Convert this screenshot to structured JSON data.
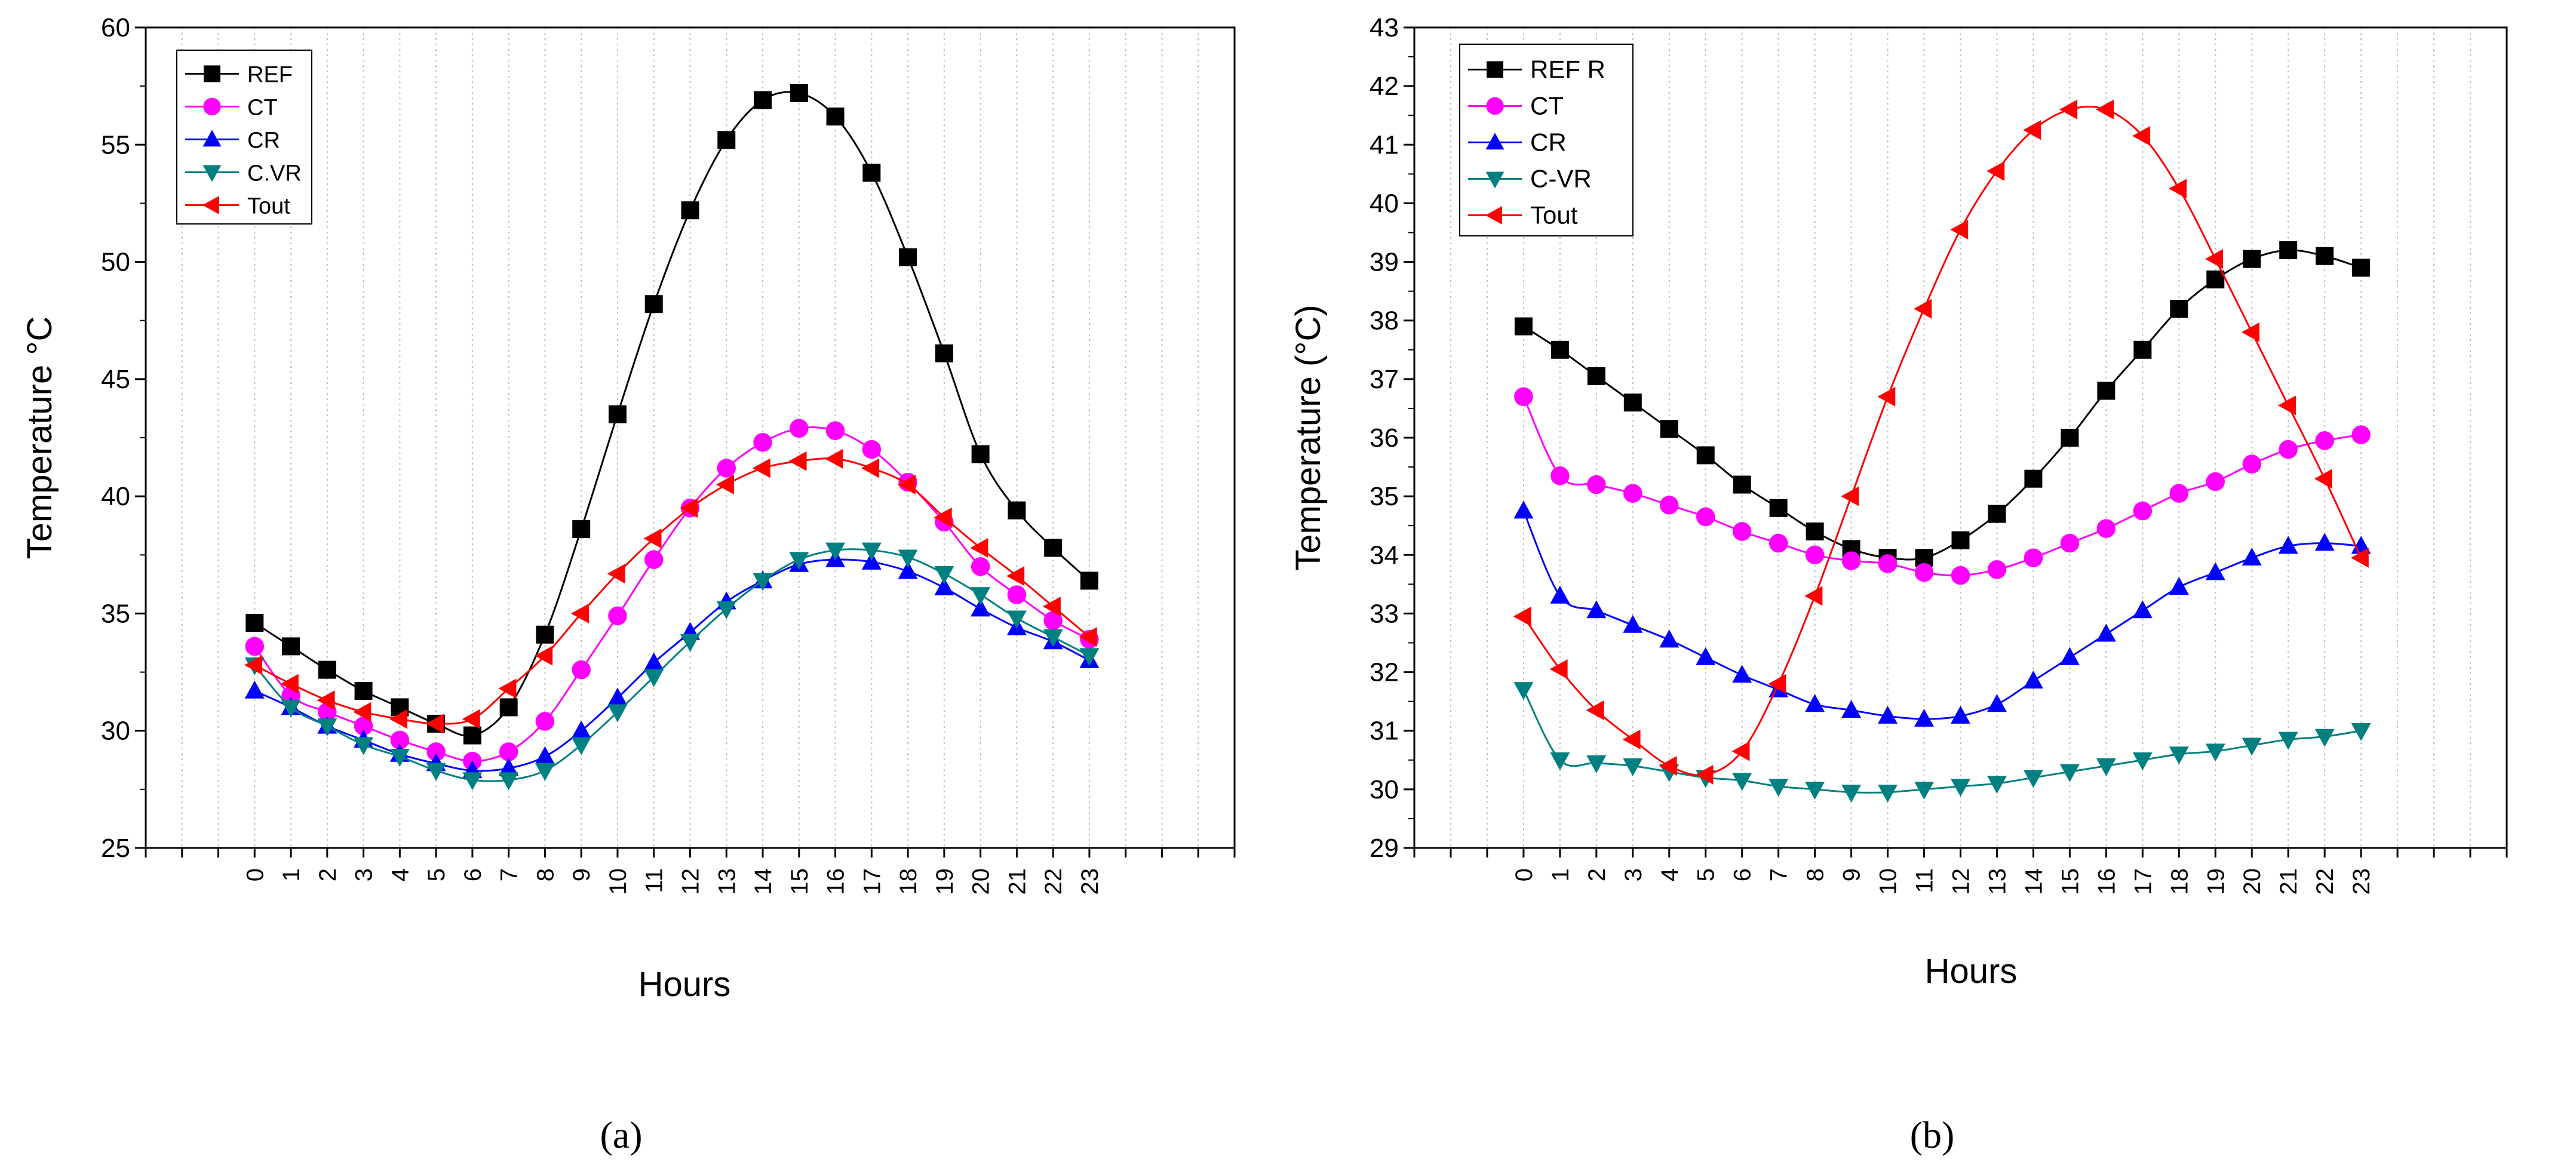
{
  "chart_data": [
    {
      "type": "line",
      "panel_label": "a",
      "xlabel": "Hours",
      "ylabel": "Temperature °C",
      "ylim": [
        25,
        60
      ],
      "yticks": [
        25,
        30,
        35,
        40,
        45,
        50,
        55,
        60
      ],
      "x": [
        0,
        1,
        2,
        3,
        4,
        5,
        6,
        7,
        8,
        9,
        10,
        11,
        12,
        13,
        14,
        15,
        16,
        17,
        18,
        19,
        20,
        21,
        22,
        23
      ],
      "xtick_labels": [
        "0",
        "1",
        "2",
        "3",
        "4",
        "5",
        "6",
        "7",
        "8",
        "9",
        "10",
        "11",
        "12",
        "13",
        "14",
        "15",
        "16",
        "17",
        "18",
        "19",
        "20",
        "21",
        "22",
        "23"
      ],
      "legend": "top-left",
      "grid": "vertical dotted",
      "series": [
        {
          "name": "REF",
          "color": "#000000",
          "marker": "square",
          "values": [
            34.6,
            33.6,
            32.6,
            31.7,
            31.0,
            30.3,
            29.8,
            31.0,
            34.1,
            38.6,
            43.5,
            48.2,
            52.2,
            55.2,
            56.9,
            57.2,
            56.2,
            53.8,
            50.2,
            46.1,
            41.8,
            39.4,
            37.8,
            36.4
          ]
        },
        {
          "name": "CT",
          "color": "#ff00ff",
          "marker": "circle",
          "values": [
            33.6,
            31.5,
            30.8,
            30.2,
            29.6,
            29.1,
            28.7,
            29.1,
            30.4,
            32.6,
            34.9,
            37.3,
            39.5,
            41.2,
            42.3,
            42.9,
            42.8,
            42.0,
            40.6,
            38.9,
            37.0,
            35.8,
            34.7,
            33.9
          ]
        },
        {
          "name": "CR",
          "color": "#0000ff",
          "marker": "triangle-up",
          "values": [
            31.7,
            31.0,
            30.2,
            29.6,
            29.0,
            28.6,
            28.3,
            28.4,
            28.9,
            30.0,
            31.4,
            32.9,
            34.2,
            35.5,
            36.4,
            37.1,
            37.3,
            37.2,
            36.8,
            36.1,
            35.2,
            34.4,
            33.8,
            33.0
          ]
        },
        {
          "name": "C.VR",
          "color": "#008080",
          "marker": "triangle-down",
          "values": [
            32.8,
            31.0,
            30.2,
            29.4,
            28.9,
            28.3,
            27.9,
            27.9,
            28.3,
            29.4,
            30.8,
            32.3,
            33.8,
            35.2,
            36.4,
            37.3,
            37.7,
            37.7,
            37.4,
            36.7,
            35.8,
            34.8,
            34.0,
            33.2
          ]
        },
        {
          "name": "Tout",
          "color": "#ff0000",
          "marker": "triangle-left",
          "values": [
            32.8,
            32.0,
            31.3,
            30.8,
            30.5,
            30.3,
            30.5,
            31.8,
            33.2,
            35.0,
            36.7,
            38.2,
            39.5,
            40.5,
            41.2,
            41.5,
            41.6,
            41.2,
            40.5,
            39.1,
            37.8,
            36.6,
            35.3,
            34.0
          ]
        }
      ]
    },
    {
      "type": "line",
      "panel_label": "b",
      "xlabel": "Hours",
      "ylabel": "Temperature (°C)",
      "ylim": [
        29,
        43
      ],
      "yticks": [
        29,
        30,
        31,
        32,
        33,
        34,
        35,
        36,
        37,
        38,
        39,
        40,
        41,
        42,
        43
      ],
      "x": [
        0,
        1,
        2,
        3,
        4,
        5,
        6,
        7,
        8,
        9,
        10,
        11,
        12,
        13,
        14,
        15,
        16,
        17,
        18,
        19,
        20,
        21,
        22,
        23
      ],
      "xtick_labels": [
        "0",
        "1",
        "2",
        "3",
        "4",
        "5",
        "6",
        "7",
        "8",
        "9",
        "10",
        "11",
        "12",
        "13",
        "14",
        "15",
        "16",
        "17",
        "18",
        "19",
        "20",
        "21",
        "22",
        "23"
      ],
      "legend": "top-left",
      "grid": "vertical dotted",
      "series": [
        {
          "name": "REF R",
          "color": "#000000",
          "marker": "square",
          "values": [
            37.9,
            37.5,
            37.05,
            36.6,
            36.15,
            35.7,
            35.2,
            34.8,
            34.4,
            34.1,
            33.95,
            33.95,
            34.25,
            34.7,
            35.3,
            36.0,
            36.8,
            37.5,
            38.2,
            38.7,
            39.05,
            39.2,
            39.1,
            38.9
          ]
        },
        {
          "name": "CT",
          "color": "#ff00ff",
          "marker": "circle",
          "values": [
            36.7,
            35.35,
            35.2,
            35.05,
            34.85,
            34.65,
            34.4,
            34.2,
            34.0,
            33.9,
            33.85,
            33.7,
            33.65,
            33.75,
            33.95,
            34.2,
            34.45,
            34.75,
            35.05,
            35.25,
            35.55,
            35.8,
            35.95,
            36.05
          ]
        },
        {
          "name": "CR",
          "color": "#0000ff",
          "marker": "triangle-up",
          "values": [
            34.75,
            33.3,
            33.05,
            32.8,
            32.55,
            32.25,
            31.95,
            31.7,
            31.45,
            31.35,
            31.25,
            31.2,
            31.25,
            31.45,
            31.85,
            32.25,
            32.65,
            33.05,
            33.45,
            33.7,
            33.95,
            34.15,
            34.2,
            34.15
          ]
        },
        {
          "name": "C-VR",
          "color": "#008080",
          "marker": "triangle-down",
          "values": [
            31.7,
            30.5,
            30.45,
            30.4,
            30.3,
            30.2,
            30.15,
            30.05,
            30.0,
            29.95,
            29.95,
            30.0,
            30.05,
            30.1,
            30.2,
            30.3,
            30.4,
            30.5,
            30.6,
            30.65,
            30.75,
            30.85,
            30.9,
            31.0
          ]
        },
        {
          "name": "Tout",
          "color": "#ff0000",
          "marker": "triangle-left",
          "values": [
            32.95,
            32.05,
            31.35,
            30.85,
            30.4,
            30.25,
            30.65,
            31.8,
            33.3,
            35.0,
            36.7,
            38.2,
            39.55,
            40.55,
            41.25,
            41.6,
            41.6,
            41.15,
            40.25,
            39.05,
            37.8,
            36.55,
            35.3,
            33.95
          ]
        }
      ]
    }
  ],
  "captions": [
    "(a)",
    "(b)"
  ]
}
